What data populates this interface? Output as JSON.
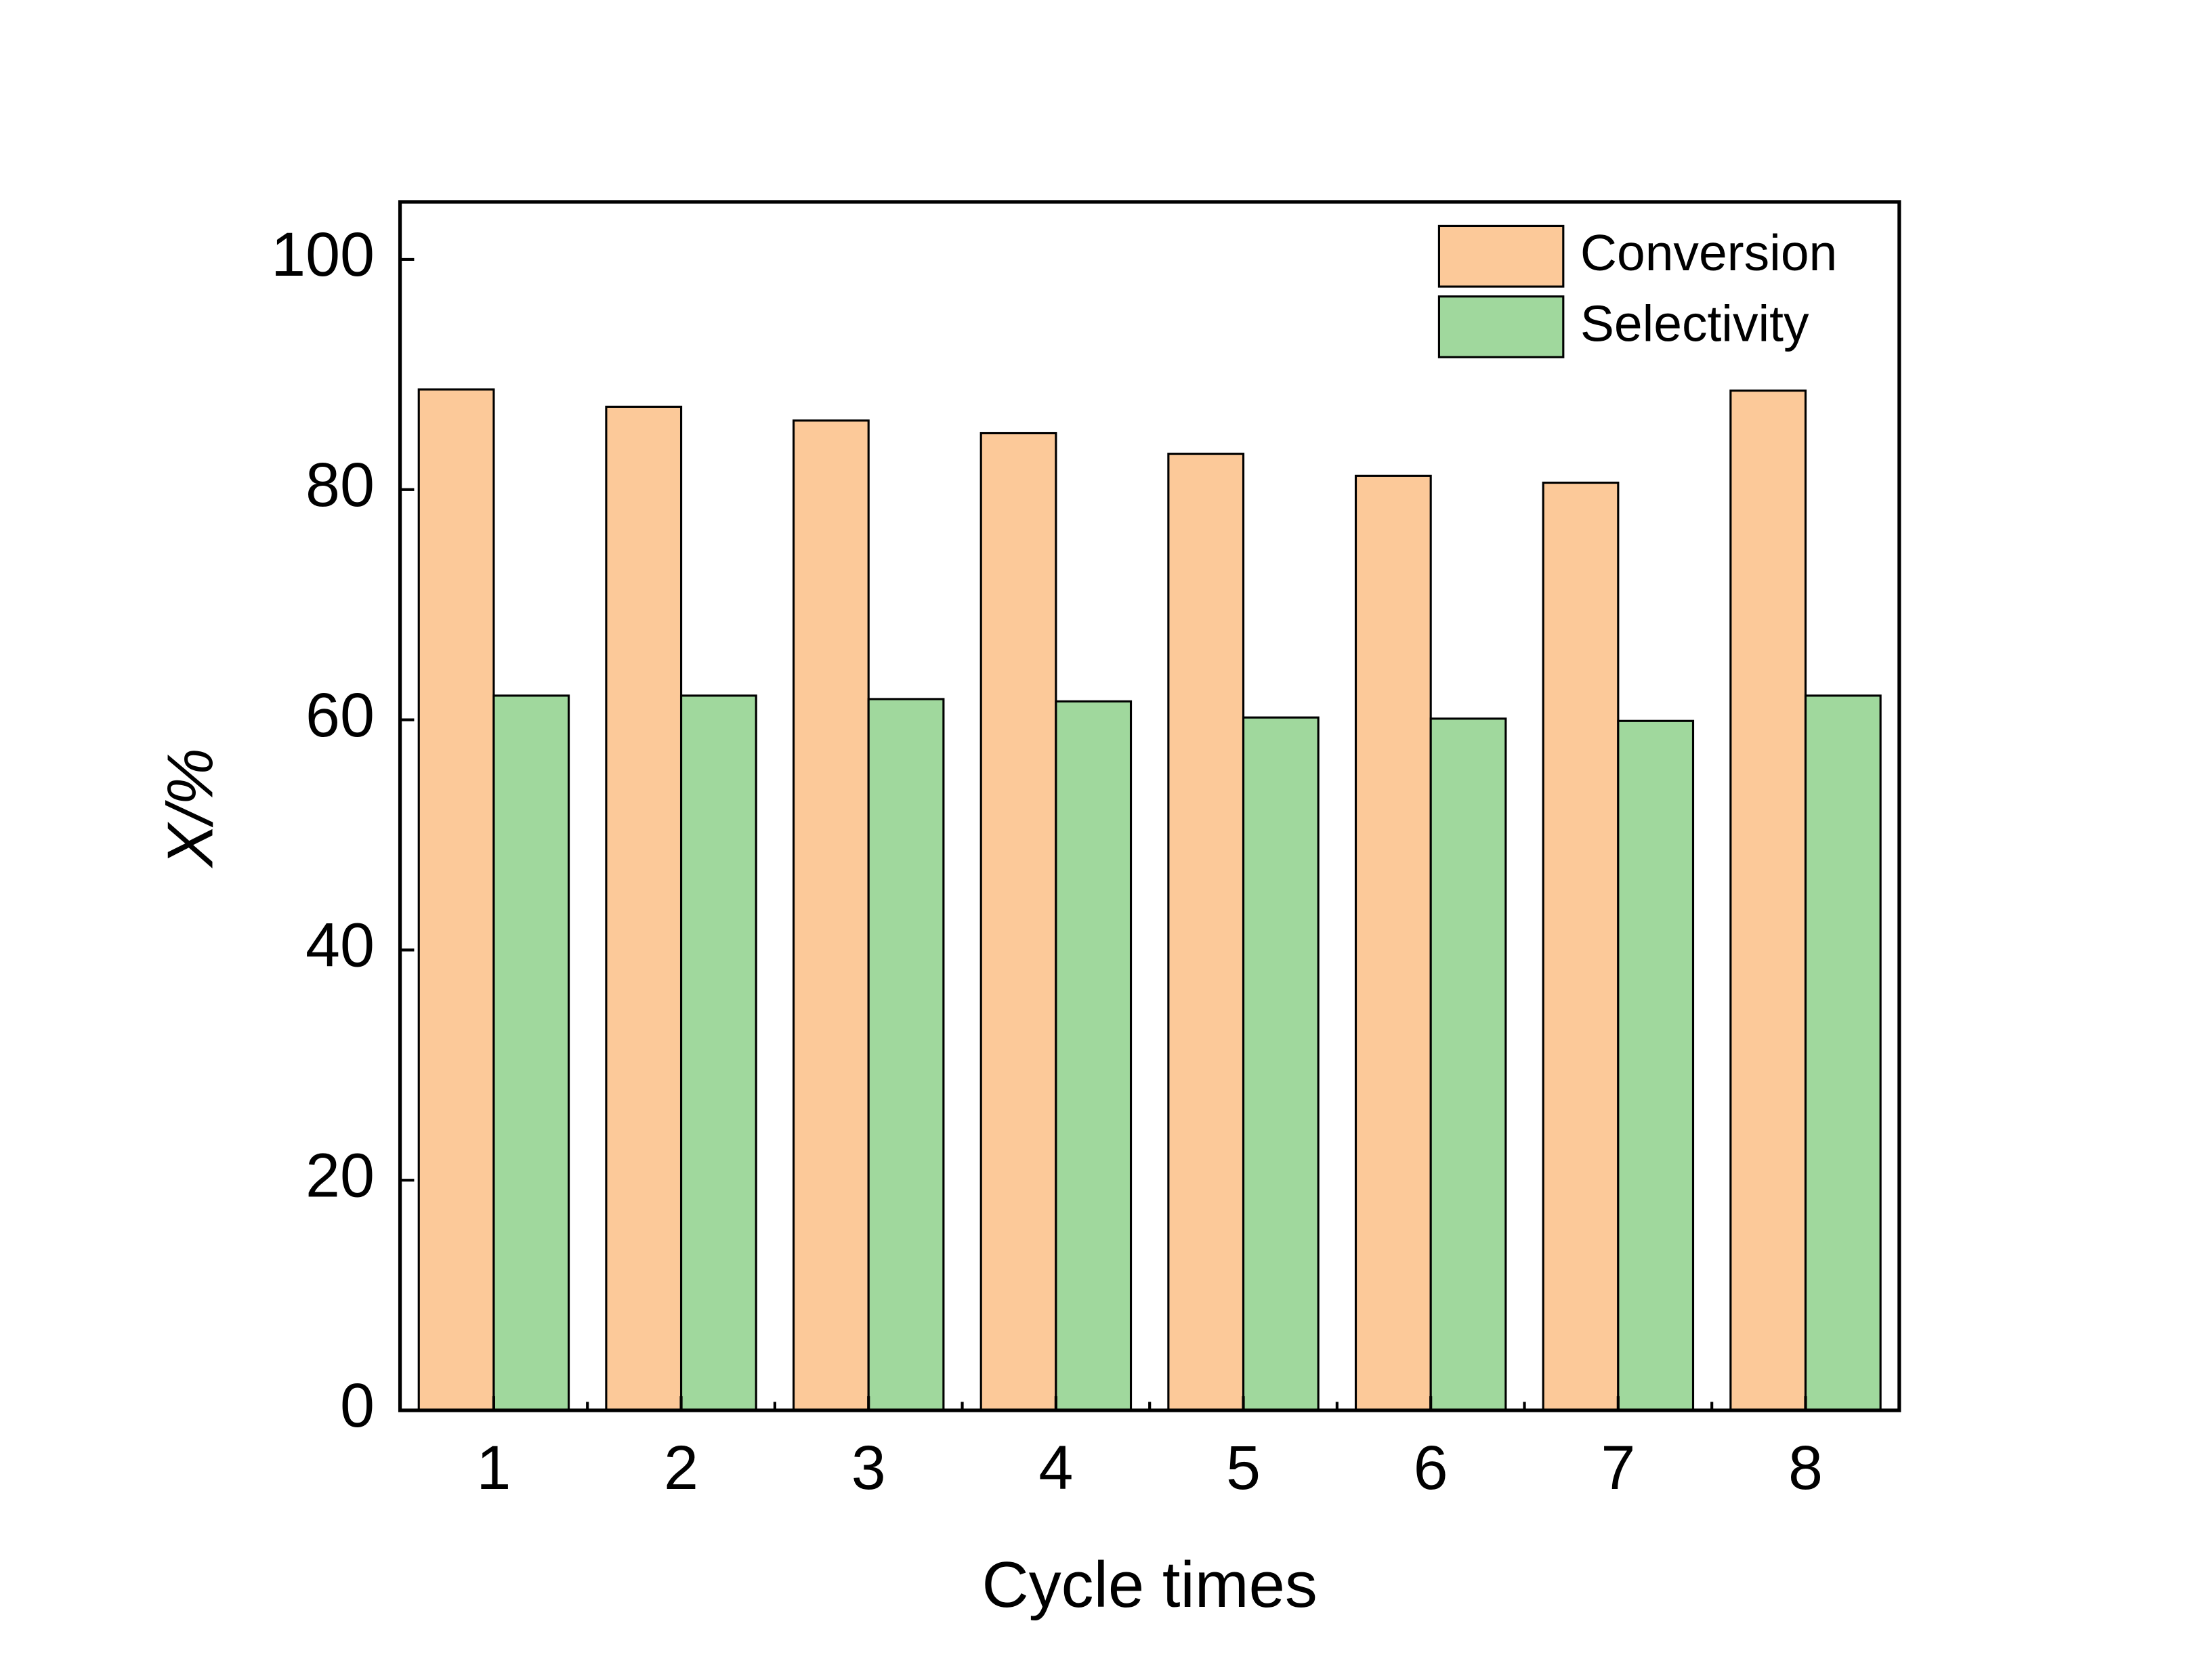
{
  "chart_data": {
    "type": "bar",
    "x_label": "Cycle times",
    "y_label": "X/%",
    "categories": [
      "1",
      "2",
      "3",
      "4",
      "5",
      "6",
      "7",
      "8"
    ],
    "series": [
      {
        "name": "Conversion",
        "color": "#fcc999",
        "values": [
          88.7,
          87.2,
          86.0,
          84.9,
          83.1,
          81.2,
          80.6,
          88.6
        ]
      },
      {
        "name": "Selectivity",
        "color": "#a0d89d",
        "values": [
          62.1,
          62.1,
          61.8,
          61.6,
          60.2,
          60.1,
          59.9,
          62.1
        ]
      }
    ],
    "ylim": [
      0,
      105
    ],
    "yticks": [
      0,
      20,
      40,
      60,
      80,
      100
    ],
    "legend": "upper right",
    "grid": false
  }
}
